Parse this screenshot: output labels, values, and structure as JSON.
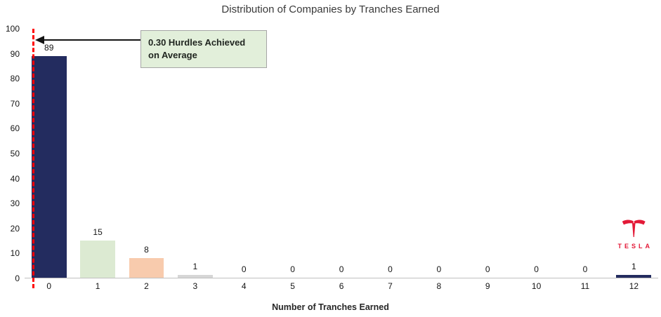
{
  "chart_data": {
    "type": "bar",
    "title": "Distribution of Companies by Tranches Earned",
    "xlabel": "Number of Tranches Earned",
    "ylabel": "",
    "categories": [
      "0",
      "1",
      "2",
      "3",
      "4",
      "5",
      "6",
      "7",
      "8",
      "9",
      "10",
      "11",
      "12"
    ],
    "values": [
      89,
      15,
      8,
      1,
      0,
      0,
      0,
      0,
      0,
      0,
      0,
      0,
      1
    ],
    "bar_colors": [
      "#232C5F",
      "#DCEAD2",
      "#F8CBAD",
      "#D6D6D6",
      null,
      null,
      null,
      null,
      null,
      null,
      null,
      null,
      "#232C5F"
    ],
    "ylim": [
      0,
      100
    ],
    "ytick_step": 10,
    "grid": false,
    "legend": "none",
    "average_line": {
      "value": 0.3,
      "color": "#FF0000",
      "style": "dashed"
    },
    "annotation": {
      "line1": "0.30 Hurdles Achieved",
      "line2": "on Average",
      "fill": "#E2EFDA"
    },
    "tesla": {
      "word": "TESLA",
      "color": "#E31937"
    }
  }
}
